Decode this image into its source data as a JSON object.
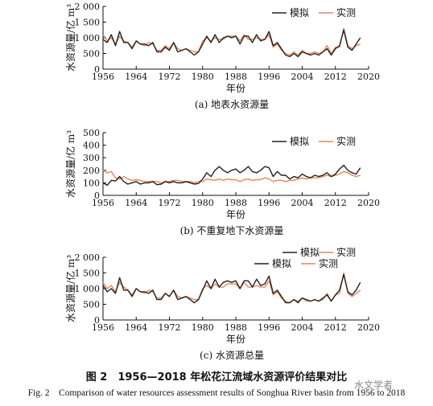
{
  "chart_data": [
    {
      "type": "line",
      "title": "(a) 地表水资源量",
      "xlabel": "年份",
      "ylabel": "水资源量/亿 m³",
      "xlim": [
        1956,
        2020
      ],
      "ylim": [
        0,
        2000
      ],
      "x_ticks": [
        "1956",
        "1964",
        "1972",
        "1980",
        "1988",
        "1996",
        "2004",
        "2012",
        "2020"
      ],
      "y_ticks": [
        "0",
        "500",
        "1 000",
        "1 500",
        "2 000"
      ],
      "legend": [
        "模拟",
        "实测"
      ],
      "legend_position": "top-right",
      "x": [
        1956,
        1957,
        1958,
        1959,
        1960,
        1961,
        1962,
        1963,
        1964,
        1965,
        1966,
        1967,
        1968,
        1969,
        1970,
        1971,
        1972,
        1973,
        1974,
        1975,
        1976,
        1977,
        1978,
        1979,
        1980,
        1981,
        1982,
        1983,
        1984,
        1985,
        1986,
        1987,
        1988,
        1989,
        1990,
        1991,
        1992,
        1993,
        1994,
        1995,
        1996,
        1997,
        1998,
        1999,
        2000,
        2001,
        2002,
        2003,
        2004,
        2005,
        2006,
        2007,
        2008,
        2009,
        2010,
        2011,
        2012,
        2013,
        2014,
        2015,
        2016,
        2017,
        2018
      ],
      "series": [
        {
          "name": "模拟",
          "color": "#222222",
          "values": [
            950,
            850,
            1100,
            750,
            1200,
            850,
            850,
            650,
            900,
            800,
            800,
            750,
            850,
            550,
            550,
            700,
            600,
            850,
            550,
            600,
            650,
            550,
            450,
            550,
            800,
            1050,
            850,
            1100,
            850,
            1000,
            1050,
            1000,
            1050,
            800,
            1050,
            1050,
            850,
            1100,
            900,
            950,
            1200,
            750,
            850,
            650,
            450,
            400,
            500,
            400,
            550,
            500,
            450,
            500,
            450,
            550,
            650,
            450,
            650,
            750,
            1250,
            700,
            600,
            800,
            1000
          ]
        },
        {
          "name": "实测",
          "color": "#e8865a",
          "values": [
            1100,
            900,
            1000,
            800,
            1050,
            900,
            850,
            700,
            900,
            800,
            750,
            850,
            800,
            600,
            600,
            750,
            650,
            850,
            650,
            600,
            650,
            600,
            550,
            550,
            900,
            1000,
            900,
            1000,
            950,
            950,
            1050,
            1050,
            1050,
            900,
            1100,
            950,
            950,
            1000,
            950,
            950,
            1100,
            700,
            800,
            600,
            500,
            450,
            550,
            450,
            600,
            500,
            500,
            550,
            500,
            550,
            750,
            500,
            700,
            700,
            1300,
            750,
            650,
            750,
            800
          ]
        }
      ]
    },
    {
      "type": "line",
      "title": "(b) 不重复地下水资源量",
      "xlabel": "年份",
      "ylabel": "水资源量/亿 m³",
      "xlim": [
        1956,
        2020
      ],
      "ylim": [
        0,
        500
      ],
      "x_ticks": [
        "1956",
        "1964",
        "1972",
        "1980",
        "1988",
        "1996",
        "2004",
        "2012",
        "2020"
      ],
      "y_ticks": [
        "0",
        "100",
        "200",
        "300",
        "400",
        "500"
      ],
      "legend": [
        "模拟",
        "实测"
      ],
      "legend_position": "top-right",
      "x": [
        1956,
        1957,
        1958,
        1959,
        1960,
        1961,
        1962,
        1963,
        1964,
        1965,
        1966,
        1967,
        1968,
        1969,
        1970,
        1971,
        1972,
        1973,
        1974,
        1975,
        1976,
        1977,
        1978,
        1979,
        1980,
        1981,
        1982,
        1983,
        1984,
        1985,
        1986,
        1987,
        1988,
        1989,
        1990,
        1991,
        1992,
        1993,
        1994,
        1995,
        1996,
        1997,
        1998,
        1999,
        2000,
        2001,
        2002,
        2003,
        2004,
        2005,
        2006,
        2007,
        2008,
        2009,
        2010,
        2011,
        2012,
        2013,
        2014,
        2015,
        2016,
        2017,
        2018
      ],
      "series": [
        {
          "name": "模拟",
          "color": "#222222",
          "values": [
            100,
            80,
            120,
            115,
            150,
            110,
            90,
            100,
            110,
            90,
            100,
            100,
            110,
            85,
            90,
            110,
            100,
            110,
            100,
            100,
            110,
            100,
            90,
            95,
            130,
            180,
            150,
            200,
            230,
            200,
            180,
            200,
            210,
            180,
            200,
            230,
            190,
            180,
            200,
            230,
            220,
            150,
            190,
            160,
            160,
            130,
            150,
            140,
            170,
            150,
            140,
            160,
            150,
            160,
            180,
            150,
            170,
            210,
            240,
            200,
            180,
            170,
            220
          ]
        },
        {
          "name": "实测",
          "color": "#e8865a",
          "values": [
            200,
            180,
            190,
            140,
            130,
            150,
            130,
            120,
            125,
            120,
            110,
            110,
            110,
            110,
            100,
            110,
            110,
            120,
            120,
            110,
            110,
            110,
            100,
            110,
            110,
            130,
            125,
            120,
            130,
            120,
            130,
            125,
            125,
            110,
            125,
            130,
            120,
            125,
            125,
            140,
            130,
            110,
            120,
            120,
            110,
            120,
            120,
            130,
            140,
            130,
            140,
            140,
            140,
            150,
            160,
            150,
            160,
            170,
            190,
            180,
            160,
            150,
            160
          ]
        }
      ]
    },
    {
      "type": "line",
      "title": "(c) 水资源总量",
      "xlabel": "年份",
      "ylabel": "水资源量/亿 m³",
      "xlim": [
        1956,
        2020
      ],
      "ylim": [
        0,
        2000
      ],
      "x_ticks": [
        "1956",
        "1964",
        "1972",
        "1980",
        "1988",
        "1996",
        "2004",
        "2012",
        "2020"
      ],
      "y_ticks": [
        "0",
        "500",
        "1 000",
        "1 500",
        "2 000"
      ],
      "legend": [
        "模拟",
        "实测",
        "模拟",
        "实测"
      ],
      "legend_position": "top-right",
      "x": [
        1956,
        1957,
        1958,
        1959,
        1960,
        1961,
        1962,
        1963,
        1964,
        1965,
        1966,
        1967,
        1968,
        1969,
        1970,
        1971,
        1972,
        1973,
        1974,
        1975,
        1976,
        1977,
        1978,
        1979,
        1980,
        1981,
        1982,
        1983,
        1984,
        1985,
        1986,
        1987,
        1988,
        1989,
        1990,
        1991,
        1992,
        1993,
        1994,
        1995,
        1996,
        1997,
        1998,
        1999,
        2000,
        2001,
        2002,
        2003,
        2004,
        2005,
        2006,
        2007,
        2008,
        2009,
        2010,
        2011,
        2012,
        2013,
        2014,
        2015,
        2016,
        2017,
        2018
      ],
      "series": [
        {
          "name": "模拟",
          "color": "#222222",
          "values": [
            1100,
            900,
            1000,
            850,
            1350,
            950,
            950,
            750,
            1000,
            900,
            900,
            850,
            950,
            650,
            650,
            850,
            750,
            950,
            650,
            700,
            750,
            650,
            550,
            650,
            950,
            1250,
            1000,
            1300,
            1050,
            1200,
            1250,
            1200,
            1250,
            1000,
            1250,
            1250,
            1050,
            1300,
            1100,
            1150,
            1400,
            850,
            950,
            750,
            550,
            550,
            650,
            550,
            700,
            650,
            600,
            650,
            600,
            700,
            800,
            600,
            800,
            950,
            1450,
            900,
            800,
            950,
            1200
          ]
        },
        {
          "name": "实测",
          "color": "#e8865a",
          "values": [
            1200,
            1000,
            1100,
            900,
            1200,
            1050,
            950,
            800,
            1000,
            900,
            850,
            950,
            900,
            700,
            700,
            850,
            750,
            950,
            750,
            700,
            750,
            700,
            650,
            650,
            1000,
            1100,
            1000,
            1150,
            1050,
            1050,
            1150,
            1150,
            1150,
            1000,
            1200,
            1050,
            1050,
            1100,
            1050,
            1050,
            1250,
            800,
            900,
            700,
            600,
            550,
            650,
            600,
            700,
            600,
            600,
            650,
            600,
            650,
            850,
            600,
            800,
            850,
            1500,
            850,
            750,
            850,
            950
          ]
        }
      ]
    }
  ],
  "figure": {
    "caption_cn": "图 2　1956—2018 年松花江流域水资源评价结果对比",
    "caption_en": "Fig. 2　Comparison of water resources assessment results of Songhua River basin from 1956 to 2018",
    "watermark": "水文学者"
  }
}
